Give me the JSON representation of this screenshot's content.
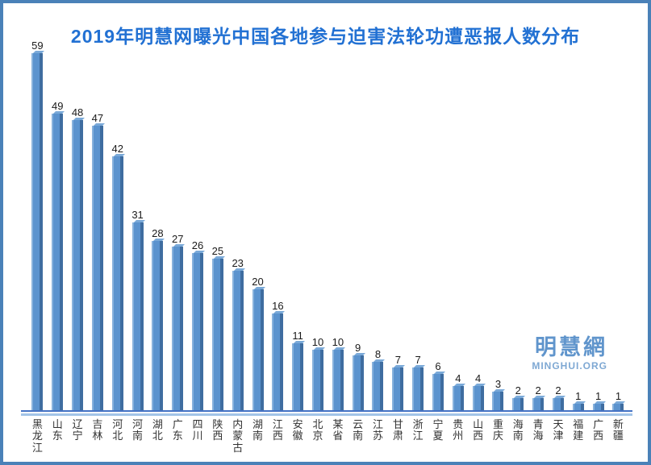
{
  "title": "2019年明慧网曝光中国各地参与迫害法轮功遭恶报人数分布",
  "watermark": {
    "logo_text": "明慧網",
    "domain_text": "MINGHUI.ORG"
  },
  "colors": {
    "frame_border": "#4a81b8",
    "title_blue": "#2271d3",
    "bar_face": "#5b93ce",
    "bar_highlight": "#88b2dc",
    "bar_shadow": "#3f6da0",
    "bar_top_bevel": "#7aa9d8",
    "axis_line": "#4472c4",
    "axis_shadow_line": "#a3c4e8",
    "value_label": "#1a1a1a",
    "category_label": "#333333",
    "watermark_blue": "#6095cc"
  },
  "chart_data": {
    "type": "bar",
    "title": "2019年明慧网曝光中国各地参与迫害法轮功遭恶报人数分布",
    "categories": [
      "黑龙江",
      "山东",
      "辽宁",
      "吉林",
      "河北",
      "河南",
      "湖北",
      "广东",
      "四川",
      "陕西",
      "内蒙古",
      "湖南",
      "江西",
      "安徽",
      "北京",
      "某省",
      "云南",
      "江苏",
      "甘肃",
      "浙江",
      "宁夏",
      "贵州",
      "山西",
      "重庆",
      "海南",
      "青海",
      "天津",
      "福建",
      "广西",
      "新疆"
    ],
    "values": [
      59,
      49,
      48,
      47,
      42,
      31,
      28,
      27,
      26,
      25,
      23,
      20,
      16,
      11,
      10,
      10,
      9,
      8,
      7,
      7,
      6,
      4,
      4,
      3,
      2,
      2,
      2,
      1,
      1,
      1
    ],
    "xlabel": "",
    "ylabel": "",
    "ylim": [
      0,
      59
    ],
    "grid": false,
    "legend": false,
    "data_labels": true,
    "orientation": "vertical",
    "style": "3d-bar"
  }
}
